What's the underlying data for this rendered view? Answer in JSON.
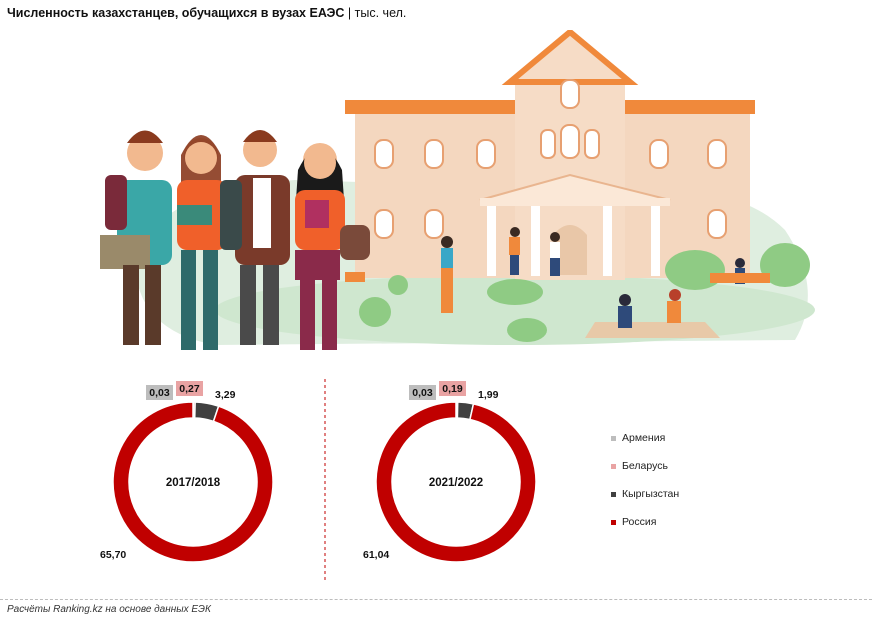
{
  "title": {
    "bold": "Численность казахстанцев, обучащихся в вузах ЕАЭС",
    "unit": " | тыс. чел."
  },
  "source": "Расчёты Ranking.kz на основе данных ЕЭК",
  "colors": {
    "armenia": "#bdbdbd",
    "belarus": "#e9a3a3",
    "kyrgyzstan": "#404040",
    "russia": "#c00000",
    "divider": "#c00000"
  },
  "chart_data": [
    {
      "type": "pie",
      "subtype": "donut",
      "center_label": "2017/2018",
      "categories": [
        "Армения",
        "Беларусь",
        "Кыргызстан",
        "Россия"
      ],
      "values": [
        0.03,
        0.27,
        3.29,
        65.7
      ],
      "value_labels": [
        "0,03",
        "0,27",
        "3,29",
        "65,70"
      ]
    },
    {
      "type": "pie",
      "subtype": "donut",
      "center_label": "2021/2022",
      "categories": [
        "Армения",
        "Беларусь",
        "Кыргызстан",
        "Россия"
      ],
      "values": [
        0.03,
        0.19,
        1.99,
        61.04
      ],
      "value_labels": [
        "0,03",
        "0,19",
        "1,99",
        "61,04"
      ]
    }
  ],
  "legend": [
    {
      "label": "Армения",
      "color": "#bdbdbd"
    },
    {
      "label": "Беларусь",
      "color": "#e9a3a3"
    },
    {
      "label": "Кыргызстан",
      "color": "#404040"
    },
    {
      "label": "Россия",
      "color": "#c00000"
    }
  ]
}
